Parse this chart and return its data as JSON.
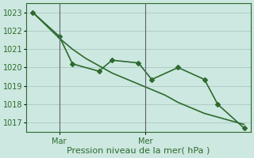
{
  "line_color": "#2d6a2d",
  "bg_color": "#cce8e0",
  "grid_color": "#b0ccc8",
  "xlabel": "Pression niveau de la mer( hPa )",
  "ylim": [
    1016.5,
    1023.5
  ],
  "yticks": [
    1017,
    1018,
    1019,
    1020,
    1021,
    1022,
    1023
  ],
  "xlabel_fontsize": 8,
  "ytick_fontsize": 7,
  "xtick_fontsize": 7,
  "line_width": 1.2,
  "marker": "D",
  "marker_size": 3,
  "smooth_x": [
    0,
    1,
    2,
    3,
    4,
    5,
    6,
    7,
    8,
    9,
    10,
    11,
    12,
    13,
    14,
    15,
    16
  ],
  "smooth_y": [
    1023.0,
    1022.3,
    1021.6,
    1021.0,
    1020.5,
    1020.1,
    1019.7,
    1019.4,
    1019.1,
    1018.8,
    1018.5,
    1018.1,
    1017.8,
    1017.5,
    1017.3,
    1017.1,
    1016.9
  ],
  "noisy_x": [
    0,
    2,
    3,
    5,
    6,
    8,
    9,
    11,
    13,
    14,
    16
  ],
  "noisy_y": [
    1023.0,
    1021.7,
    1020.2,
    1019.8,
    1020.4,
    1020.25,
    1019.35,
    1020.0,
    1019.35,
    1018.0,
    1016.7
  ],
  "mar_x": 2.0,
  "mer_x": 8.5,
  "xlim": [
    -0.5,
    16.5
  ],
  "vline_color": "#606070"
}
